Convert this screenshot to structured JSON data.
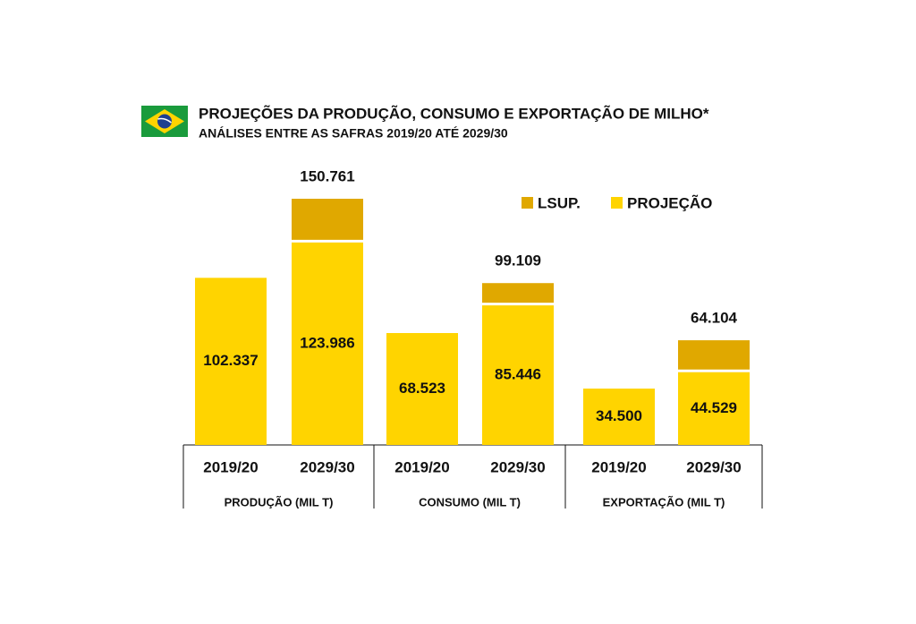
{
  "chart_data": {
    "type": "bar",
    "title": "PROJEÇÕES DA PRODUÇÃO, CONSUMO E EXPORTAÇÃO DE MILHO*",
    "subtitle": "ANÁLISES ENTRE AS SAFRAS 2019/20 ATÉ 2029/30",
    "groups": [
      "PRODUÇÃO (MIL T)",
      "CONSUMO (MIL T)",
      "EXPORTAÇÃO (MIL T)"
    ],
    "categories": [
      "2019/20",
      "2029/30",
      "2019/20",
      "2029/30",
      "2019/20",
      "2029/30"
    ],
    "series": [
      {
        "name": "LSUP.",
        "color": "#e0a800",
        "values": [
          null,
          150761,
          null,
          99109,
          null,
          64104
        ],
        "value_labels": [
          null,
          "150.761",
          null,
          "99.109",
          null,
          "64.104"
        ]
      },
      {
        "name": "PROJEÇÃO",
        "color": "#ffd400",
        "values": [
          102337,
          123986,
          68523,
          85446,
          34500,
          44529
        ],
        "value_labels": [
          "102.337",
          "123.986",
          "68.523",
          "85.446",
          "34.500",
          "44.529"
        ]
      }
    ]
  }
}
